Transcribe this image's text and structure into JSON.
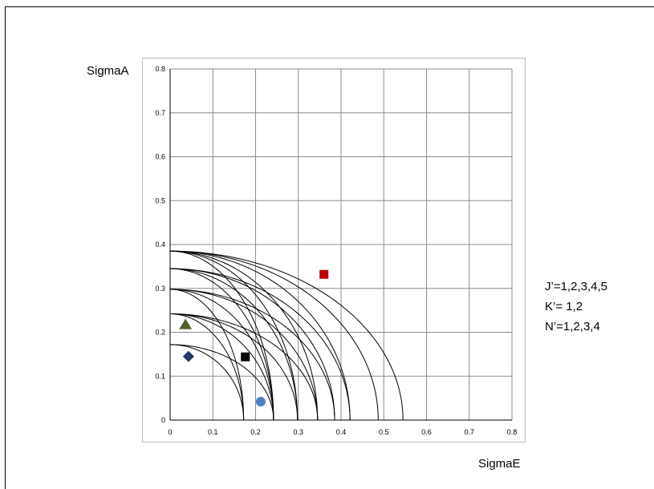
{
  "chart_data": {
    "type": "scatter",
    "title": "",
    "xlabel": "SigmaE",
    "ylabel": "SigmaA",
    "xlim": [
      0,
      0.8
    ],
    "ylim": [
      0,
      0.8
    ],
    "x_ticks": [
      "0",
      "0.1",
      "0.2",
      "0.3",
      "0.4",
      "0.5",
      "0.6",
      "0.7",
      "0.8"
    ],
    "y_ticks": [
      "0",
      "0.1",
      "0.2",
      "0.3",
      "0.4",
      "0.5",
      "0.6",
      "0.7",
      "0.8"
    ],
    "grid": true,
    "annotations": [
      "J’=1,2,3,4,5",
      "K’= 1,2",
      "N’=1,2,3,4"
    ],
    "points": [
      {
        "x": 0.036,
        "y": 0.218,
        "shape": "triangle",
        "color": "#4f6228"
      },
      {
        "x": 0.043,
        "y": 0.145,
        "shape": "diamond",
        "color": "#1f3864"
      },
      {
        "x": 0.176,
        "y": 0.144,
        "shape": "square",
        "color": "#000000"
      },
      {
        "x": 0.36,
        "y": 0.332,
        "shape": "square",
        "color": "#c00000"
      },
      {
        "x": 0.212,
        "y": 0.042,
        "shape": "circle",
        "color": "#4f81bd"
      }
    ],
    "curves": [
      {
        "a": 0.172,
        "e": 0.172
      },
      {
        "a": 0.172,
        "e": 0.242
      },
      {
        "a": 0.242,
        "e": 0.172
      },
      {
        "a": 0.242,
        "e": 0.242
      },
      {
        "a": 0.242,
        "e": 0.298
      },
      {
        "a": 0.242,
        "e": 0.345
      },
      {
        "a": 0.298,
        "e": 0.172
      },
      {
        "a": 0.298,
        "e": 0.242
      },
      {
        "a": 0.298,
        "e": 0.345
      },
      {
        "a": 0.298,
        "e": 0.385
      },
      {
        "a": 0.345,
        "e": 0.242
      },
      {
        "a": 0.345,
        "e": 0.298
      },
      {
        "a": 0.345,
        "e": 0.385
      },
      {
        "a": 0.345,
        "e": 0.421
      },
      {
        "a": 0.385,
        "e": 0.242
      },
      {
        "a": 0.385,
        "e": 0.298
      },
      {
        "a": 0.385,
        "e": 0.345
      },
      {
        "a": 0.385,
        "e": 0.421
      },
      {
        "a": 0.385,
        "e": 0.487
      },
      {
        "a": 0.385,
        "e": 0.545
      }
    ]
  }
}
